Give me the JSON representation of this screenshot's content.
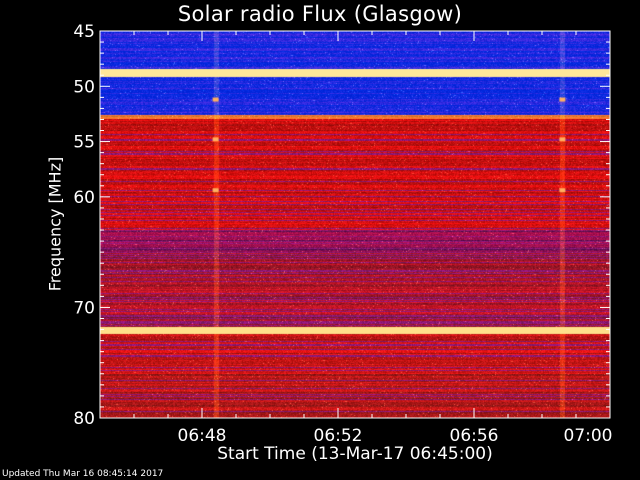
{
  "chart_data": {
    "type": "heatmap",
    "title": "Solar radio Flux (Glasgow)",
    "xlabel": "Start Time (13-Mar-17 06:45:00)",
    "ylabel": "Frequency [MHz]",
    "x_ticks": [
      "06:48",
      "06:52",
      "06:56",
      "07:00"
    ],
    "x_tick_minutes": [
      3,
      7,
      11,
      15
    ],
    "xlim_minutes": [
      0,
      15
    ],
    "y_ticks": [
      45,
      50,
      55,
      60,
      70,
      80
    ],
    "ylim": [
      45,
      80
    ],
    "bands": [
      {
        "from": 45.0,
        "to": 48.4,
        "color": "#1a2ae0"
      },
      {
        "from": 48.4,
        "to": 49.2,
        "color": "#ffe89a"
      },
      {
        "from": 49.2,
        "to": 52.6,
        "color": "#1a2ae0"
      },
      {
        "from": 52.6,
        "to": 53.0,
        "color": "#ff7a30"
      },
      {
        "from": 53.0,
        "to": 63.0,
        "color": "#d01010"
      },
      {
        "from": 63.0,
        "to": 65.0,
        "color": "#8a1050"
      },
      {
        "from": 65.0,
        "to": 71.8,
        "color": "#b01525"
      },
      {
        "from": 71.8,
        "to": 72.4,
        "color": "#ffe08a"
      },
      {
        "from": 72.4,
        "to": 76.0,
        "color": "#c81515"
      },
      {
        "from": 76.0,
        "to": 80.0,
        "color": "#b51818"
      }
    ],
    "vertical_artifacts_minutes": [
      3.4,
      13.6
    ]
  },
  "footer": {
    "updated": "Updated Thu Mar 16 08:45:14 2017"
  }
}
